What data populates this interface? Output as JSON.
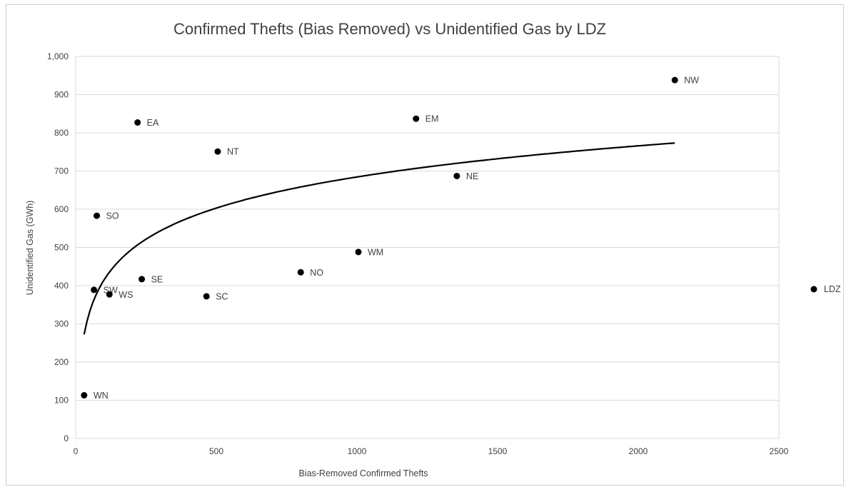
{
  "chart_data": {
    "type": "scatter",
    "title": "Confirmed Thefts (Bias Removed) vs Unidentified Gas by LDZ",
    "xlabel": "Bias-Removed Confirmed Thefts",
    "ylabel": "Unidentified Gas (GWh)",
    "xlim": [
      0,
      2500
    ],
    "ylim": [
      0,
      1000
    ],
    "x_ticks": [
      "0",
      "500",
      "1000",
      "1500",
      "2000",
      "2500"
    ],
    "y_ticks": [
      "0",
      "100",
      "200",
      "300",
      "400",
      "500",
      "600",
      "700",
      "800",
      "900",
      "1,000"
    ],
    "grid": "horizontal",
    "legend": {
      "position": "right",
      "entries": [
        "LDZ"
      ]
    },
    "series": [
      {
        "name": "LDZ",
        "color": "#000000",
        "points": [
          {
            "label": "NW",
            "x": 2130,
            "y": 938
          },
          {
            "label": "EM",
            "x": 1210,
            "y": 837
          },
          {
            "label": "EA",
            "x": 220,
            "y": 827
          },
          {
            "label": "NT",
            "x": 505,
            "y": 751
          },
          {
            "label": "NE",
            "x": 1355,
            "y": 687
          },
          {
            "label": "SO",
            "x": 75,
            "y": 583
          },
          {
            "label": "WM",
            "x": 1005,
            "y": 488
          },
          {
            "label": "NO",
            "x": 800,
            "y": 435
          },
          {
            "label": "SE",
            "x": 235,
            "y": 417
          },
          {
            "label": "SW",
            "x": 65,
            "y": 389
          },
          {
            "label": "WS",
            "x": 120,
            "y": 377
          },
          {
            "label": "SC",
            "x": 465,
            "y": 372
          },
          {
            "label": "WN",
            "x": 30,
            "y": 113
          }
        ]
      }
    ],
    "trendline": {
      "type": "logarithmic",
      "color": "#000000",
      "x_range": [
        30,
        2130
      ]
    }
  }
}
